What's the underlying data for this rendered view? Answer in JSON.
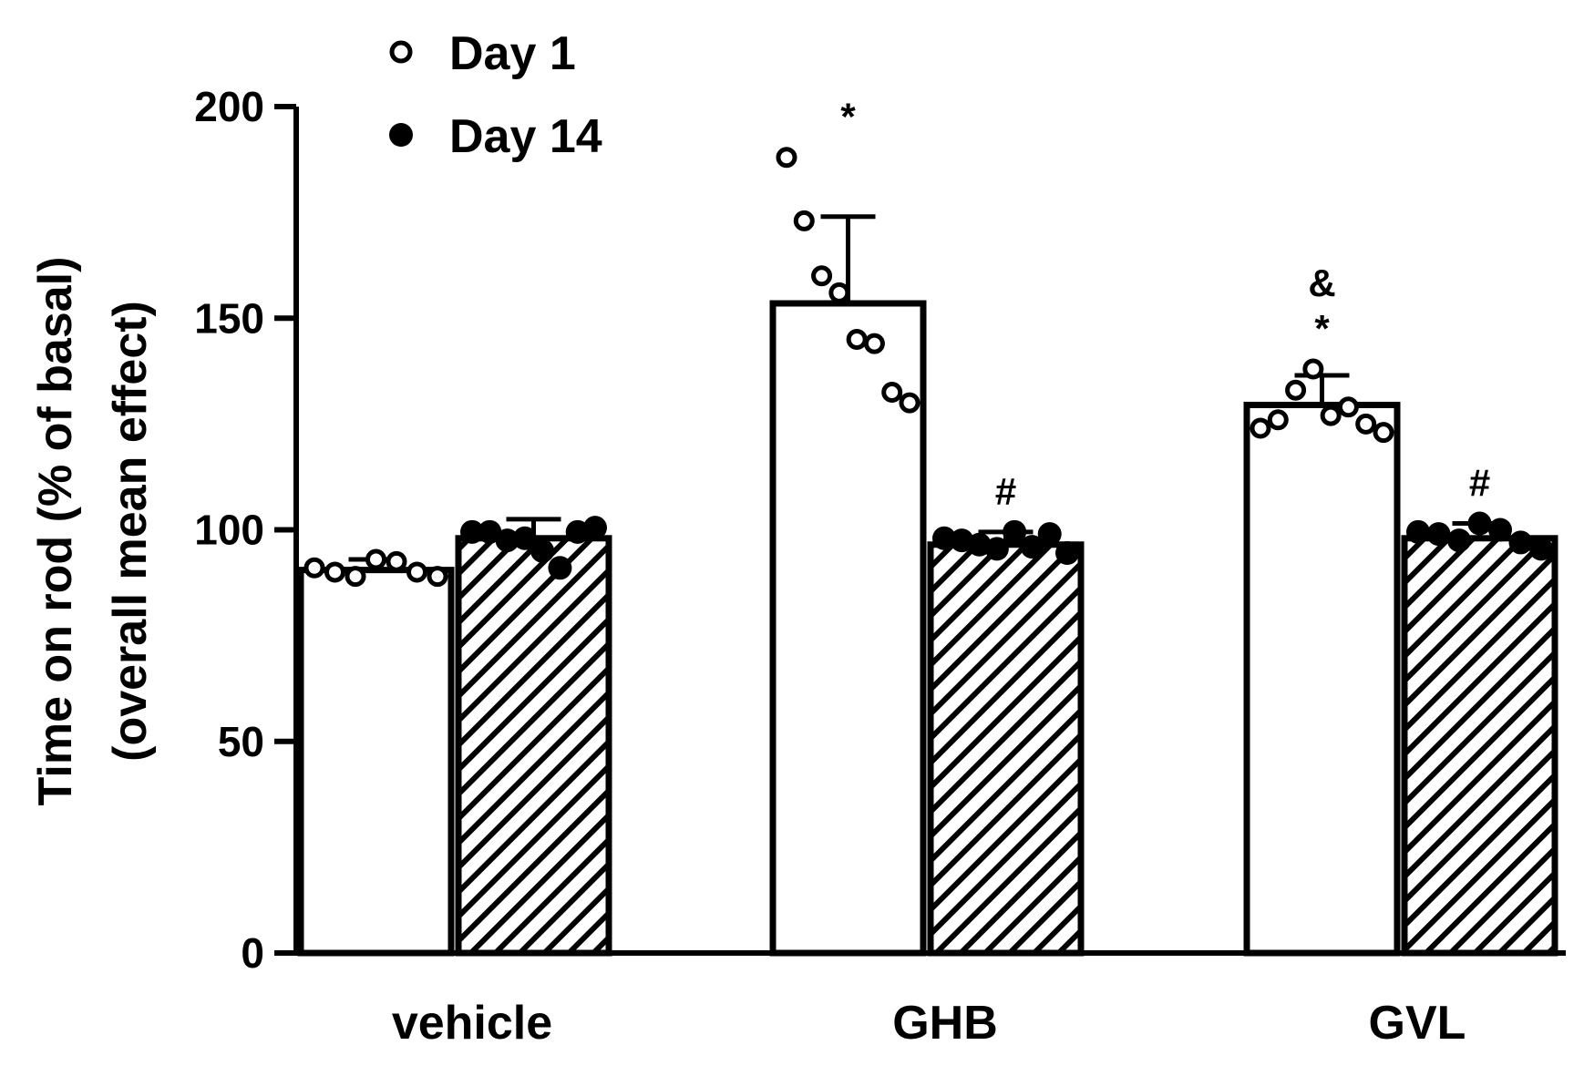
{
  "chart_data": {
    "type": "bar",
    "ylabel_line1": "Time on rod (% of basal)",
    "ylabel_line2": "(overall mean effect)",
    "ylim": [
      0,
      200
    ],
    "yticks": [
      "0",
      "50",
      "100",
      "150",
      "200"
    ],
    "categories": [
      "vehicle",
      "GHB",
      "GVL"
    ],
    "legend_position": "top-left",
    "series": [
      {
        "name": "Day 1",
        "fill": "open",
        "values": [
          90.5,
          153.5,
          129.5
        ],
        "errors": [
          2.5,
          20.5,
          7.0
        ],
        "points": [
          [
            91,
            90,
            89,
            93,
            92.5,
            90,
            89
          ],
          [
            188,
            173,
            160,
            156,
            145,
            144,
            132.5,
            130
          ],
          [
            124,
            126,
            133,
            138,
            127,
            129,
            125,
            123
          ]
        ]
      },
      {
        "name": "Day 14",
        "fill": "hatched",
        "values": [
          98,
          96.5,
          98
        ],
        "errors": [
          4.5,
          3.0,
          3.5
        ],
        "points": [
          [
            99.5,
            99.5,
            97.5,
            98,
            95,
            91,
            99.5,
            100.5
          ],
          [
            98,
            97.5,
            96.5,
            95.5,
            99.5,
            96,
            99,
            94.5
          ],
          [
            99.5,
            99,
            97.5,
            101.5,
            100,
            97,
            95.5
          ]
        ]
      }
    ],
    "annotations": [
      {
        "category": "GHB",
        "series": "Day 1",
        "text": "*"
      },
      {
        "category": "GHB",
        "series": "Day 14",
        "text": "#"
      },
      {
        "category": "GVL",
        "series": "Day 1",
        "text": "&"
      },
      {
        "category": "GVL",
        "series": "Day 1",
        "text": "*"
      },
      {
        "category": "GVL",
        "series": "Day 14",
        "text": "#"
      }
    ]
  }
}
